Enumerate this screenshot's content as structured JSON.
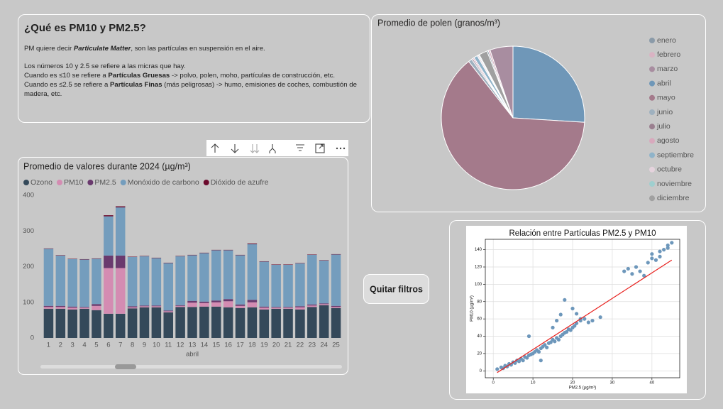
{
  "text_card": {
    "title": "¿Qué es PM10 y PM2.5?",
    "paragraphs": [
      [
        [
          {
            "text": "PM quiere decir "
          },
          {
            "text": "Particulate Matter",
            "bold": true,
            "italic": true
          },
          {
            "text": ", son las partículas en suspensión en el aire."
          }
        ]
      ],
      [
        [
          {
            "text": "Los números 10 y 2.5 se refiere a las micras que hay."
          }
        ],
        [
          {
            "text": "Cuando es ≤10 se refiere a "
          },
          {
            "text": "Partículas Gruesas",
            "bold": true
          },
          {
            "text": " -> polvo, polen, moho, partículas de construcción, etc."
          }
        ],
        [
          {
            "text": "Cuando es ≤2.5 se refiere a "
          },
          {
            "text": "Partículas Finas",
            "bold": true
          },
          {
            "text": " (más peligrosas) -> humo, emisiones de coches, combustión de madera, etc."
          }
        ]
      ]
    ]
  },
  "bar_chart": {
    "type": "bar",
    "stacked": true,
    "title": "Promedio de valores durante 2024 (µg/m³)",
    "categories": [
      "1",
      "2",
      "3",
      "4",
      "5",
      "6",
      "7",
      "8",
      "9",
      "10",
      "11",
      "12",
      "13",
      "14",
      "15",
      "16",
      "17",
      "18",
      "19",
      "20",
      "21",
      "22",
      "23",
      "24",
      "25"
    ],
    "x_label": "abril",
    "ylim": [
      0,
      400
    ],
    "yticks": [
      0,
      100,
      200,
      300,
      400
    ],
    "grid": false,
    "series": [
      {
        "name": "Ozono",
        "color": "#34495a",
        "values": [
          82,
          82,
          80,
          82,
          78,
          68,
          68,
          83,
          86,
          86,
          72,
          87,
          87,
          88,
          88,
          86,
          84,
          86,
          80,
          82,
          82,
          80,
          87,
          92,
          84
        ]
      },
      {
        "name": "PM10",
        "color": "#d48cb2",
        "values": [
          5,
          5,
          5,
          3,
          12,
          128,
          128,
          3,
          3,
          3,
          3,
          3,
          12,
          10,
          12,
          17,
          6,
          14,
          5,
          3,
          3,
          6,
          4,
          3,
          3
        ]
      },
      {
        "name": "PM2.5",
        "color": "#6a3a6e",
        "values": [
          3,
          3,
          3,
          2,
          5,
          35,
          35,
          3,
          2,
          2,
          2,
          2,
          5,
          4,
          5,
          6,
          4,
          7,
          3,
          2,
          2,
          3,
          3,
          2,
          3
        ]
      },
      {
        "name": "Monóxido de carbono",
        "color": "#749dbd",
        "values": [
          160,
          141,
          133,
          133,
          127,
          110,
          135,
          138,
          138,
          133,
          133,
          137,
          128,
          136,
          141,
          137,
          138,
          156,
          126,
          118,
          118,
          120,
          139,
          120,
          144
        ]
      },
      {
        "name": "Dióxido de azufre",
        "color": "#6b0a2c",
        "values": [
          1,
          1,
          1,
          1,
          1,
          3,
          3,
          1,
          1,
          1,
          1,
          1,
          1,
          1,
          1,
          1,
          1,
          2,
          1,
          1,
          1,
          1,
          1,
          1,
          1
        ]
      }
    ]
  },
  "pie_chart": {
    "type": "pie",
    "title": "Promedio de polen (granos/m³)",
    "categories": [
      "enero",
      "febrero",
      "marzo",
      "abril",
      "mayo",
      "junio",
      "julio",
      "agosto",
      "septiembre",
      "octubre",
      "noviembre",
      "diciembre"
    ],
    "colors": [
      "#8a9aa8",
      "#d9b3c3",
      "#a88da0",
      "#6f97b8",
      "#a47a8b",
      "#9fb1bf",
      "#9a7f8f",
      "#d8a9bd",
      "#8fb3c9",
      "#e5d3dd",
      "#9fcfcf",
      "#a0a0a0"
    ],
    "values": [
      0.3,
      0.4,
      5,
      25,
      61,
      0.8,
      0.3,
      0.3,
      0.8,
      0.3,
      0.2,
      1.8
    ]
  },
  "scatter_chart": {
    "type": "scatter",
    "title": "Relación entre Partículas PM2.5 y PM10",
    "x_label": "PM2.5 (µg/m³)",
    "y_label": "PM10 (µg/m³)",
    "grid": true,
    "color": "#6d97bb",
    "xlim": [
      -2,
      47
    ],
    "ylim": [
      -8,
      152
    ],
    "xticks": [
      0,
      10,
      20,
      30,
      40
    ],
    "yticks": [
      0,
      20,
      40,
      60,
      80,
      100,
      120,
      140
    ],
    "x": [
      1,
      2,
      2.5,
      3,
      3.5,
      4,
      4.5,
      5,
      5.5,
      6,
      6.5,
      7,
      7.5,
      8,
      8.5,
      9,
      9.5,
      10,
      10.5,
      11,
      11.5,
      12,
      12.5,
      13,
      13.5,
      14,
      14.5,
      15,
      15.5,
      16,
      16.5,
      17,
      17.5,
      18,
      18.5,
      19,
      19.5,
      20,
      20.5,
      21,
      22,
      23,
      24,
      25,
      27,
      15,
      16,
      17,
      18,
      20,
      21,
      22,
      33,
      34,
      35,
      36,
      37,
      38,
      39,
      40,
      41,
      42,
      43,
      44,
      45,
      40,
      42,
      44,
      9,
      12
    ],
    "y": [
      2,
      4,
      3,
      6,
      5,
      8,
      7,
      10,
      9,
      12,
      11,
      14,
      12,
      16,
      15,
      18,
      19,
      20,
      22,
      24,
      22,
      26,
      28,
      30,
      27,
      32,
      33,
      36,
      34,
      38,
      36,
      40,
      42,
      44,
      45,
      48,
      47,
      50,
      52,
      55,
      58,
      60,
      56,
      58,
      62,
      50,
      58,
      65,
      82,
      72,
      66,
      60,
      115,
      118,
      112,
      120,
      115,
      110,
      125,
      130,
      128,
      132,
      140,
      142,
      148,
      135,
      138,
      145,
      40,
      12
    ],
    "fit_line": {
      "x": [
        1,
        45
      ],
      "y": [
        -2,
        128
      ],
      "color": "#e8211e"
    }
  },
  "button": {
    "label": "Quitar filtros"
  }
}
